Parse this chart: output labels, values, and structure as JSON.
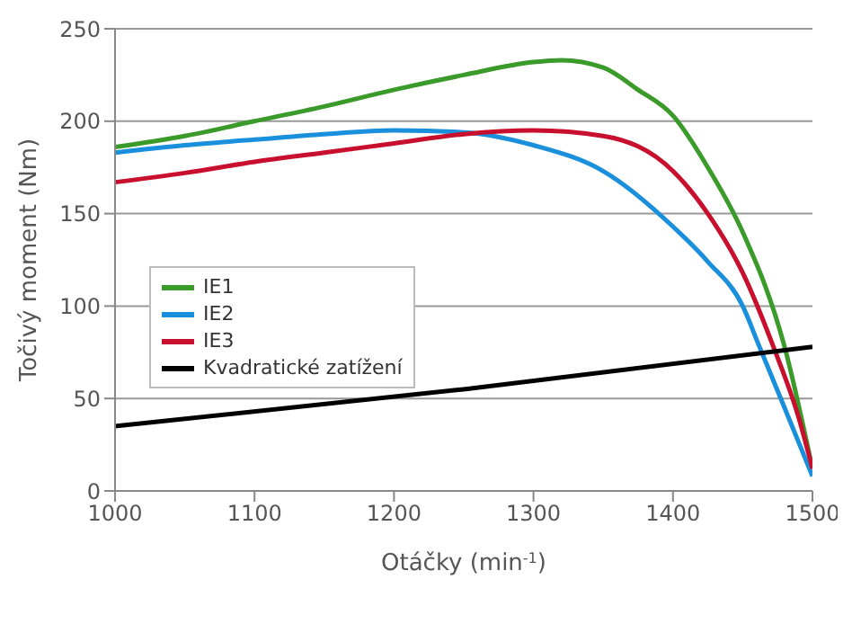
{
  "chart_data": {
    "type": "line",
    "xlabel": "Otáčky (min$^{-1}$)",
    "ylabel": "Točivý moment (Nm)",
    "xlim": [
      1000,
      1500
    ],
    "xticks": [
      1000,
      1100,
      1200,
      1300,
      1400,
      1500
    ],
    "ylim": [
      0,
      250
    ],
    "yticks": [
      0,
      50,
      100,
      150,
      200,
      250
    ],
    "grid": "y",
    "legend": "left",
    "marker": "none",
    "line_style": "solid",
    "series": [
      {
        "name": "IE1",
        "color": "#3a9a2a",
        "x": [
          1000,
          1050,
          1100,
          1150,
          1200,
          1250,
          1300,
          1320,
          1350,
          1375,
          1400,
          1425,
          1450,
          1480,
          1500
        ],
        "values": [
          186,
          192,
          200,
          208,
          217,
          225,
          232,
          233,
          229,
          217,
          203,
          175,
          140,
          78,
          12
        ]
      },
      {
        "name": "IE2",
        "color": "#1a8fdc",
        "x": [
          1000,
          1050,
          1100,
          1150,
          1200,
          1250,
          1300,
          1350,
          1400,
          1425,
          1450,
          1462,
          1480,
          1500
        ],
        "values": [
          183,
          187,
          190,
          193,
          195,
          194,
          187,
          173,
          143,
          124,
          100,
          78,
          45,
          8
        ]
      },
      {
        "name": "IE3",
        "color": "#c8102e",
        "x": [
          1000,
          1050,
          1100,
          1150,
          1200,
          1250,
          1300,
          1350,
          1400,
          1425,
          1450,
          1472,
          1490,
          1500
        ],
        "values": [
          167,
          172,
          178,
          183,
          188,
          193,
          195,
          192,
          173,
          150,
          118,
          78,
          40,
          12
        ]
      },
      {
        "name": "Kvadratické zatížení",
        "color": "#000000",
        "x": [
          1000,
          1250,
          1500
        ],
        "values": [
          35,
          55,
          78
        ]
      }
    ]
  }
}
